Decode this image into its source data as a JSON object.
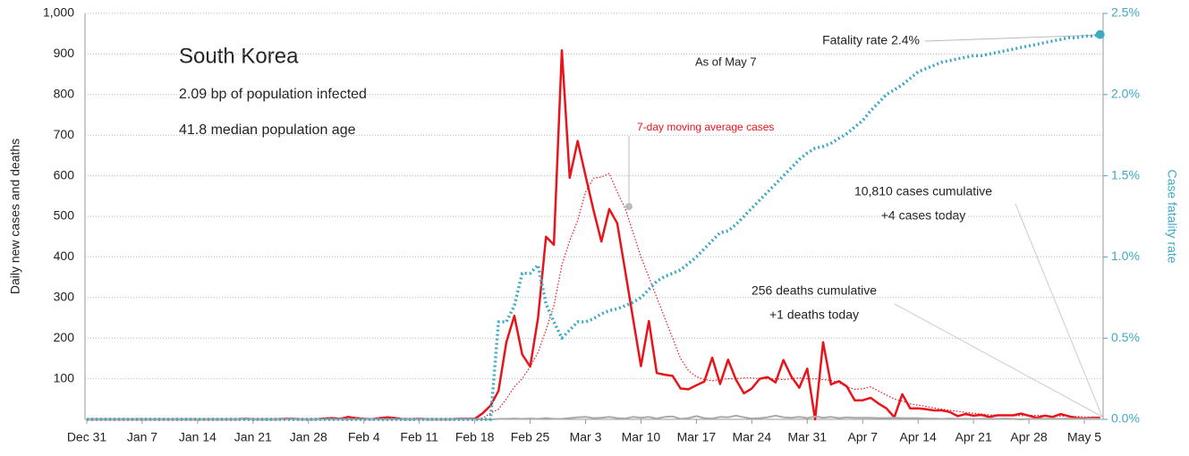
{
  "chart_data": {
    "type": "line",
    "title": "South Korea",
    "subtitle": "2.09 bp of population infected",
    "note": "41.8 median population age",
    "as_of": "As of May 7",
    "y_label": "Daily new cases and deaths",
    "y2_label": "Case fatality rate",
    "annotations": {
      "moving_average": "7-day moving average cases",
      "fatality": "Fatality rate 2.4%",
      "cases_cumulative": "10,810 cases cumulative",
      "cases_today": "+4 cases today",
      "deaths_cumulative": "256 deaths cumulative",
      "deaths_today": "+1 deaths today"
    },
    "categories": [
      "Dec 31",
      null,
      null,
      null,
      null,
      null,
      null,
      "Jan 7",
      null,
      null,
      null,
      null,
      null,
      null,
      "Jan 14",
      null,
      null,
      null,
      null,
      null,
      null,
      "Jan 21",
      null,
      null,
      null,
      null,
      null,
      null,
      "Jan 28",
      null,
      null,
      null,
      null,
      null,
      null,
      "Feb 4",
      null,
      null,
      null,
      null,
      null,
      null,
      "Feb 11",
      null,
      null,
      null,
      null,
      null,
      null,
      "Feb 18",
      null,
      null,
      null,
      null,
      null,
      null,
      "Feb 25",
      null,
      null,
      null,
      null,
      null,
      null,
      "Mar 3",
      null,
      null,
      null,
      null,
      null,
      null,
      "Mar 10",
      null,
      null,
      null,
      null,
      null,
      null,
      "Mar 17",
      null,
      null,
      null,
      null,
      null,
      null,
      "Mar 24",
      null,
      null,
      null,
      null,
      null,
      null,
      "Mar 31",
      null,
      null,
      null,
      null,
      null,
      null,
      "Apr 7",
      null,
      null,
      null,
      null,
      null,
      null,
      "Apr 14",
      null,
      null,
      null,
      null,
      null,
      null,
      "Apr 21",
      null,
      null,
      null,
      null,
      null,
      null,
      "Apr 28",
      null,
      null,
      null,
      null,
      null,
      null,
      "May 5",
      null,
      null
    ],
    "series": [
      {
        "name": "Daily new cases",
        "color": "#e8141b",
        "style": "solid",
        "width": 2.5,
        "values": [
          0,
          0,
          0,
          0,
          0,
          0,
          0,
          0,
          0,
          0,
          0,
          0,
          0,
          0,
          0,
          0,
          0,
          0,
          0,
          0,
          1,
          0,
          0,
          0,
          0,
          1,
          1,
          0,
          0,
          0,
          2,
          3,
          1,
          6,
          3,
          1,
          0,
          3,
          5,
          3,
          0,
          0,
          1,
          0,
          0,
          0,
          0,
          1,
          1,
          1,
          15,
          34,
          70,
          190,
          255,
          160,
          130,
          250,
          450,
          430,
          909,
          595,
          686,
          600,
          516,
          438,
          518,
          483,
          367,
          248,
          131,
          242,
          114,
          110,
          107,
          76,
          74,
          84,
          93,
          152,
          87,
          147,
          98,
          64,
          76,
          100,
          104,
          91,
          146,
          105,
          78,
          125,
          0,
          190,
          86,
          94,
          81,
          47,
          47,
          53,
          39,
          27,
          5,
          62,
          27,
          27,
          25,
          22,
          22,
          18,
          8,
          13,
          9,
          11,
          6,
          10,
          10,
          10,
          14,
          9,
          4,
          9,
          6,
          13,
          8,
          3,
          2,
          4,
          4
        ]
      },
      {
        "name": "7-day moving average cases",
        "color": "#e8141b",
        "style": "dotted",
        "width": 1.2,
        "values": [
          0,
          0,
          0,
          0,
          0,
          0,
          0,
          0,
          0,
          0,
          0,
          0,
          0,
          0,
          0,
          0,
          0,
          0,
          0,
          0,
          0,
          0,
          0,
          0,
          0,
          0,
          0,
          0,
          0,
          0,
          1,
          1,
          2,
          2,
          2,
          2,
          2,
          2,
          3,
          2,
          2,
          2,
          1,
          1,
          1,
          0,
          0,
          0,
          1,
          1,
          3,
          15,
          25,
          50,
          80,
          100,
          130,
          165,
          220,
          280,
          380,
          440,
          490,
          560,
          594,
          597,
          606,
          560,
          520,
          460,
          400,
          350,
          300,
          250,
          200,
          150,
          120,
          105,
          98,
          95,
          98,
          100,
          100,
          102,
          102,
          100,
          100,
          100,
          98,
          100,
          102,
          100,
          100,
          98,
          96,
          90,
          80,
          74,
          75,
          80,
          70,
          60,
          50,
          45,
          38,
          35,
          32,
          28,
          25,
          22,
          20,
          17,
          15,
          13,
          11,
          10,
          10,
          9,
          9,
          10,
          10,
          9,
          8,
          8,
          8,
          7,
          6,
          5,
          5
        ]
      },
      {
        "name": "Daily new deaths",
        "color": "#aaaaaa",
        "style": "solid",
        "width": 2,
        "values": [
          0,
          0,
          0,
          0,
          0,
          0,
          0,
          0,
          0,
          0,
          0,
          0,
          0,
          0,
          0,
          0,
          0,
          0,
          0,
          0,
          0,
          0,
          0,
          0,
          0,
          0,
          0,
          0,
          0,
          0,
          0,
          0,
          0,
          0,
          0,
          0,
          0,
          0,
          0,
          0,
          0,
          0,
          0,
          0,
          0,
          0,
          0,
          0,
          0,
          0,
          0,
          0,
          1,
          1,
          2,
          1,
          2,
          1,
          3,
          1,
          1,
          3,
          5,
          6,
          3,
          4,
          6,
          3,
          2,
          6,
          4,
          6,
          2,
          6,
          7,
          1,
          3,
          8,
          3,
          2,
          6,
          5,
          9,
          5,
          2,
          3,
          5,
          9,
          5,
          4,
          6,
          3,
          7,
          4,
          6,
          3,
          5,
          4,
          4,
          4,
          3,
          3,
          4,
          3,
          3,
          3,
          2,
          2,
          1,
          2,
          1,
          1,
          1,
          1,
          2,
          1,
          2,
          1,
          0,
          1,
          1,
          1,
          2,
          1,
          2,
          1,
          1,
          2,
          1
        ]
      },
      {
        "name": "Case fatality rate",
        "color": "#3fa9c4",
        "style": "dotted",
        "width": 3.5,
        "axis": "y2",
        "values": [
          0,
          0,
          0,
          0,
          0,
          0,
          0,
          0,
          0,
          0,
          0,
          0,
          0,
          0,
          0,
          0,
          0,
          0,
          0,
          0,
          0,
          0,
          0,
          0,
          0,
          0,
          0,
          0,
          0,
          0,
          0,
          0,
          0,
          0,
          0,
          0,
          0,
          0,
          0,
          0,
          0,
          0,
          0,
          0,
          0,
          0,
          0,
          0,
          0,
          0,
          0,
          0,
          0.6,
          0.6,
          0.7,
          0.9,
          0.9,
          0.95,
          0.71,
          0.6,
          0.5,
          0.55,
          0.6,
          0.6,
          0.62,
          0.65,
          0.67,
          0.68,
          0.7,
          0.72,
          0.75,
          0.8,
          0.85,
          0.88,
          0.9,
          0.92,
          0.96,
          1.0,
          1.05,
          1.1,
          1.15,
          1.16,
          1.2,
          1.25,
          1.3,
          1.35,
          1.4,
          1.45,
          1.5,
          1.55,
          1.6,
          1.64,
          1.67,
          1.68,
          1.7,
          1.73,
          1.76,
          1.8,
          1.84,
          1.9,
          1.95,
          2.0,
          2.03,
          2.06,
          2.1,
          2.14,
          2.16,
          2.18,
          2.2,
          2.21,
          2.22,
          2.23,
          2.24,
          2.24,
          2.25,
          2.26,
          2.27,
          2.28,
          2.29,
          2.3,
          2.31,
          2.32,
          2.33,
          2.34,
          2.35,
          2.35,
          2.36,
          2.36,
          2.37
        ]
      }
    ],
    "ylim": [
      0,
      1000
    ],
    "yticks": [
      100,
      200,
      300,
      400,
      500,
      600,
      700,
      800,
      900,
      {
        "value": 1000,
        "label": "1,000"
      }
    ],
    "y2lim": [
      0,
      2.5
    ],
    "y2ticks": [
      {
        "value": 0,
        "label": "0.0%"
      },
      {
        "value": 0.5,
        "label": "0.5%"
      },
      {
        "value": 1,
        "label": "1.0%"
      },
      {
        "value": 1.5,
        "label": "1.5%"
      },
      {
        "value": 2,
        "label": "2.0%"
      },
      {
        "value": 2.5,
        "label": "2.5%"
      }
    ],
    "y2color": "#3fa9c4",
    "grid": true
  }
}
